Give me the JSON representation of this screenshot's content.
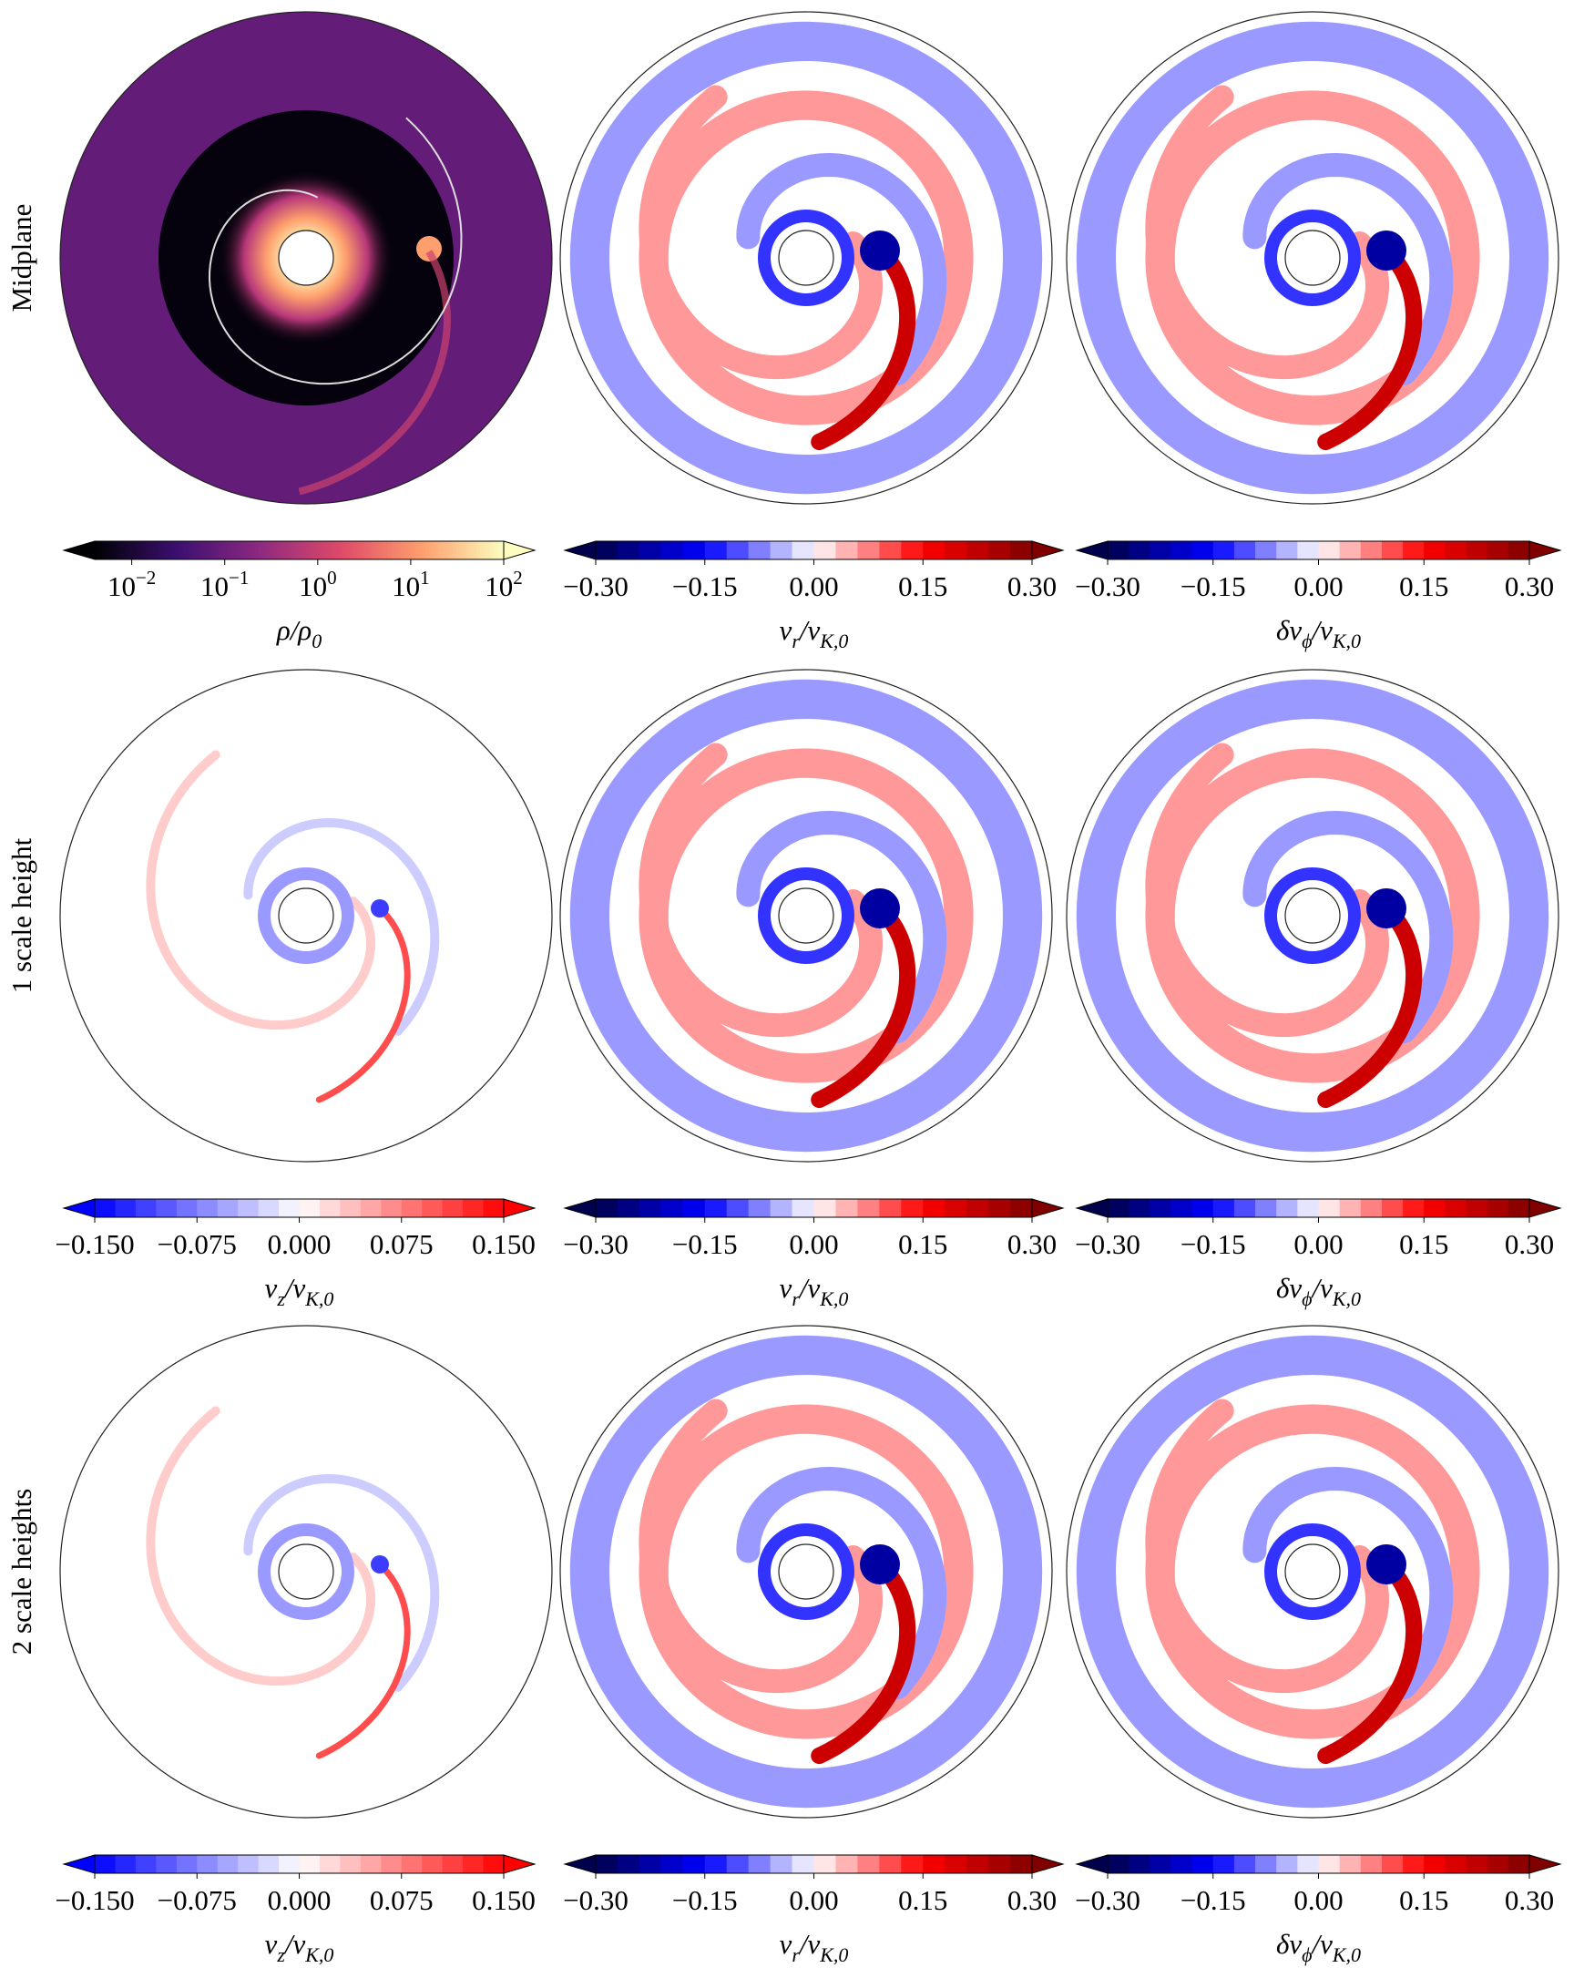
{
  "figure": {
    "rows": [
      {
        "label": "Midplane",
        "panels": [
          {
            "colormap": "magma",
            "scale": "log",
            "extend": "both",
            "lim": [
              0.004,
              100
            ],
            "ticks": [
              {
                "value": 0.01,
                "base": "10",
                "exponent": "−2"
              },
              {
                "value": 0.1,
                "base": "10",
                "exponent": "−1"
              },
              {
                "value": 1,
                "base": "10",
                "exponent": "0"
              },
              {
                "value": 10,
                "base": "10",
                "exponent": "1"
              },
              {
                "value": 100,
                "base": "10",
                "exponent": "2"
              }
            ],
            "label": [
              [
                "ρ/ρ",
                "0"
              ]
            ]
          },
          {
            "colormap": "seismic",
            "levels": 20,
            "extend": "both",
            "lim": [
              -0.3,
              0.3
            ],
            "ticks": [
              {
                "value": -0.3,
                "label": "−0.30"
              },
              {
                "value": -0.15,
                "label": "−0.15"
              },
              {
                "value": 0,
                "label": "0.00"
              },
              {
                "value": 0.15,
                "label": "0.15"
              },
              {
                "value": 0.3,
                "label": "0.30"
              }
            ],
            "label": [
              [
                "v",
                "r"
              ],
              [
                "/v",
                "K,0"
              ]
            ]
          },
          {
            "colormap": "seismic",
            "levels": 20,
            "extend": "both",
            "lim": [
              -0.3,
              0.3
            ],
            "ticks": [
              {
                "value": -0.3,
                "label": "−0.30"
              },
              {
                "value": -0.15,
                "label": "−0.15"
              },
              {
                "value": 0,
                "label": "0.00"
              },
              {
                "value": 0.15,
                "label": "0.15"
              },
              {
                "value": 0.3,
                "label": "0.30"
              }
            ],
            "label": [
              [
                "δv",
                "ϕ"
              ],
              [
                "/v",
                "K,0"
              ]
            ]
          }
        ]
      },
      {
        "label": "1 scale height",
        "panels": [
          {
            "colormap": "bwr",
            "levels": 20,
            "extend": "both",
            "lim": [
              -0.15,
              0.15
            ],
            "ticks": [
              {
                "value": -0.15,
                "label": "−0.150"
              },
              {
                "value": -0.075,
                "label": "−0.075"
              },
              {
                "value": 0,
                "label": "0.000"
              },
              {
                "value": 0.075,
                "label": "0.075"
              },
              {
                "value": 0.15,
                "label": "0.150"
              }
            ],
            "label": [
              [
                "v",
                "z"
              ],
              [
                "/v",
                "K,0"
              ]
            ]
          },
          {
            "colormap": "seismic",
            "levels": 20,
            "extend": "both",
            "lim": [
              -0.3,
              0.3
            ],
            "ticks": [
              {
                "value": -0.3,
                "label": "−0.30"
              },
              {
                "value": -0.15,
                "label": "−0.15"
              },
              {
                "value": 0,
                "label": "0.00"
              },
              {
                "value": 0.15,
                "label": "0.15"
              },
              {
                "value": 0.3,
                "label": "0.30"
              }
            ],
            "label": [
              [
                "v",
                "r"
              ],
              [
                "/v",
                "K,0"
              ]
            ]
          },
          {
            "colormap": "seismic",
            "levels": 20,
            "extend": "both",
            "lim": [
              -0.3,
              0.3
            ],
            "ticks": [
              {
                "value": -0.3,
                "label": "−0.30"
              },
              {
                "value": -0.15,
                "label": "−0.15"
              },
              {
                "value": 0,
                "label": "0.00"
              },
              {
                "value": 0.15,
                "label": "0.15"
              },
              {
                "value": 0.3,
                "label": "0.30"
              }
            ],
            "label": [
              [
                "δv",
                "ϕ"
              ],
              [
                "/v",
                "K,0"
              ]
            ]
          }
        ]
      },
      {
        "label": "2 scale heights",
        "panels": [
          {
            "colormap": "bwr",
            "levels": 20,
            "extend": "both",
            "lim": [
              -0.15,
              0.15
            ],
            "ticks": [
              {
                "value": -0.15,
                "label": "−0.150"
              },
              {
                "value": -0.075,
                "label": "−0.075"
              },
              {
                "value": 0,
                "label": "0.000"
              },
              {
                "value": 0.075,
                "label": "0.075"
              },
              {
                "value": 0.15,
                "label": "0.150"
              }
            ],
            "label": [
              [
                "v",
                "z"
              ],
              [
                "/v",
                "K,0"
              ]
            ]
          },
          {
            "colormap": "seismic",
            "levels": 20,
            "extend": "both",
            "lim": [
              -0.3,
              0.3
            ],
            "ticks": [
              {
                "value": -0.3,
                "label": "−0.30"
              },
              {
                "value": -0.15,
                "label": "−0.15"
              },
              {
                "value": 0,
                "label": "0.00"
              },
              {
                "value": 0.15,
                "label": "0.15"
              },
              {
                "value": 0.3,
                "label": "0.30"
              }
            ],
            "label": [
              [
                "v",
                "r"
              ],
              [
                "/v",
                "K,0"
              ]
            ]
          },
          {
            "colormap": "seismic",
            "levels": 20,
            "extend": "both",
            "lim": [
              -0.3,
              0.3
            ],
            "ticks": [
              {
                "value": -0.3,
                "label": "−0.30"
              },
              {
                "value": -0.15,
                "label": "−0.15"
              },
              {
                "value": 0,
                "label": "0.00"
              },
              {
                "value": 0.15,
                "label": "0.15"
              },
              {
                "value": 0.3,
                "label": "0.30"
              }
            ],
            "label": [
              [
                "δv",
                "ϕ"
              ],
              [
                "/v",
                "K,0"
              ]
            ]
          }
        ]
      }
    ]
  }
}
